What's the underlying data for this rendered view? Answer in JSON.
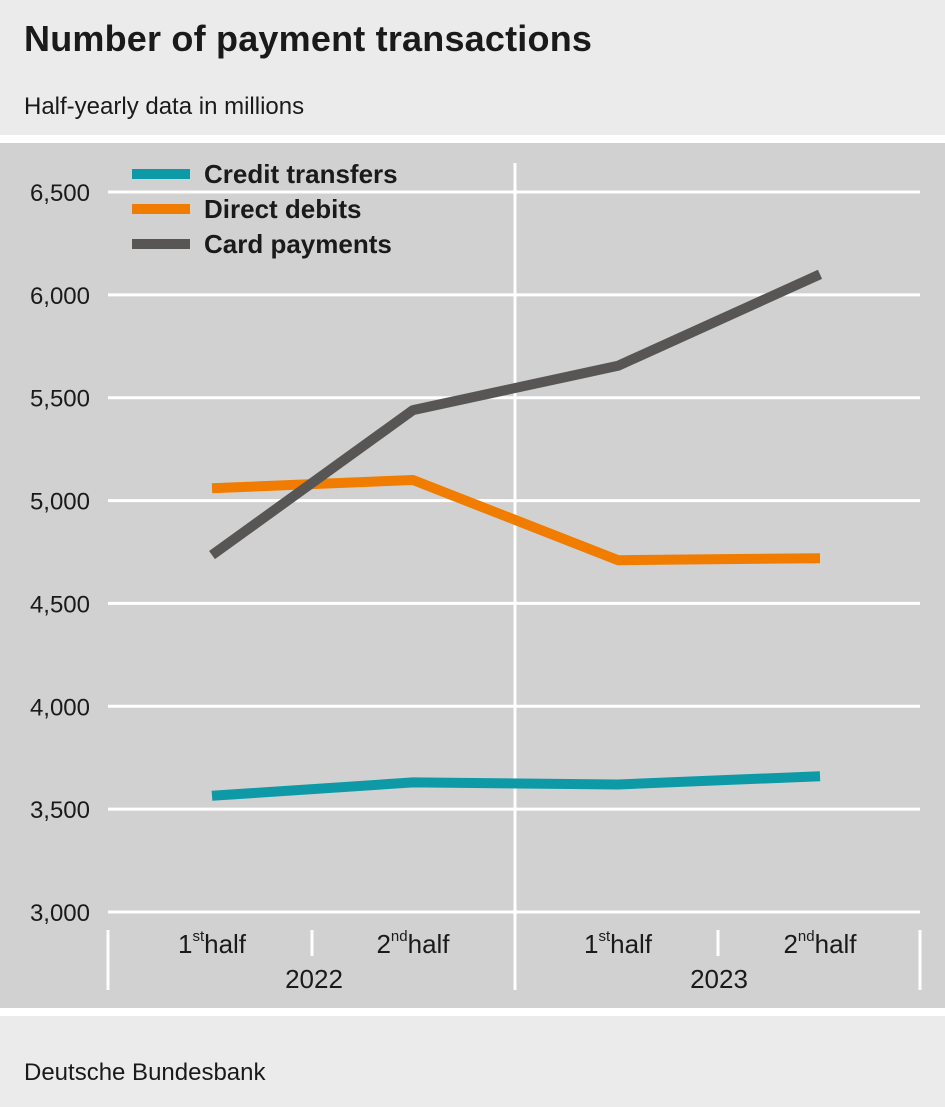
{
  "header": {
    "title": "Number of payment transactions",
    "subtitle": "Half-yearly data in millions"
  },
  "footer": {
    "source": "Deutsche Bundesbank"
  },
  "colors": {
    "plot_background": "#d1d1d1",
    "gridline": "#ffffff",
    "text": "#1a1a1a"
  },
  "chart_data": {
    "type": "line",
    "title": "Number of payment transactions",
    "subtitle": "Half-yearly data in millions",
    "categories": [
      {
        "ord": "st",
        "half": "half",
        "num": "1",
        "year": "2022"
      },
      {
        "ord": "nd",
        "half": "half",
        "num": "2",
        "year": "2022"
      },
      {
        "ord": "st",
        "half": "half",
        "num": "1",
        "year": "2023"
      },
      {
        "ord": "nd",
        "half": "half",
        "num": "2",
        "year": "2023"
      }
    ],
    "years": [
      "2022",
      "2023"
    ],
    "ylim": [
      3000,
      6500
    ],
    "yticks": [
      3000,
      3500,
      4000,
      4500,
      5000,
      5500,
      6000,
      6500
    ],
    "ytick_labels": [
      "3,000",
      "3,500",
      "4,000",
      "4,500",
      "5,000",
      "5,500",
      "6,000",
      "6,500"
    ],
    "grid": true,
    "legend_position": "top-left",
    "series": [
      {
        "name": "Credit transfers",
        "color": "#0d9aa6",
        "values": [
          3565,
          3630,
          3620,
          3660
        ]
      },
      {
        "name": "Direct debits",
        "color": "#f07d00",
        "values": [
          5060,
          5100,
          4710,
          4720
        ]
      },
      {
        "name": "Card payments",
        "color": "#585655",
        "values": [
          4735,
          5440,
          5655,
          6100
        ]
      }
    ]
  }
}
